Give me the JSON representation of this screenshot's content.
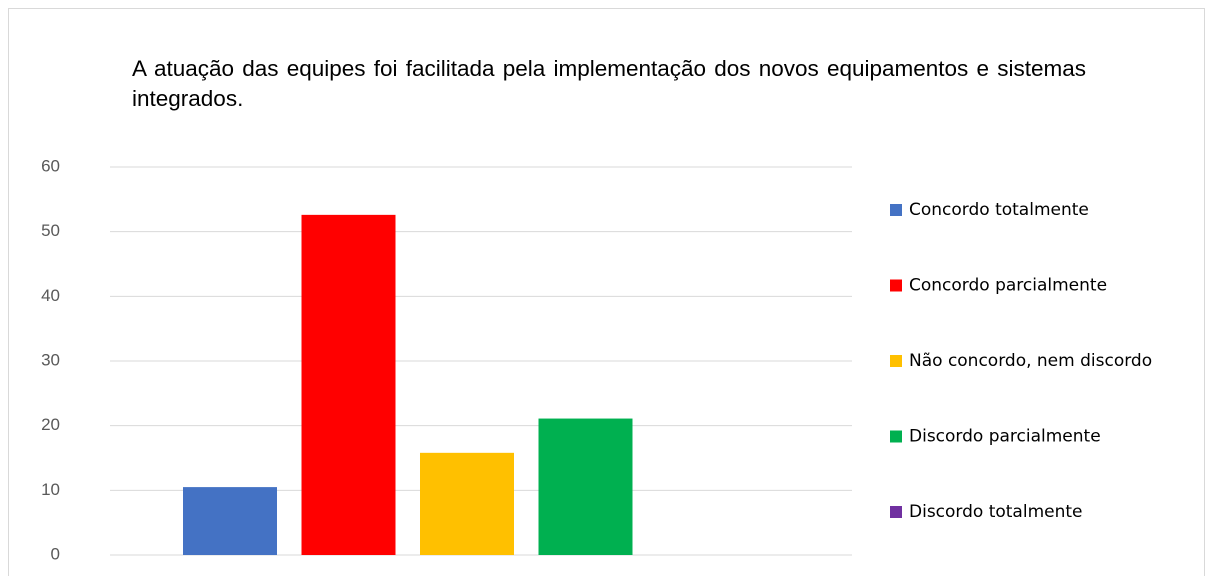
{
  "chart_data": {
    "type": "bar",
    "title": "A atuação das equipes foi facilitada pela implementação dos novos equipamentos e sistemas integrados.",
    "series": [
      {
        "name": "Concordo totalmente",
        "color": "#4472c4",
        "values": [
          10.5
        ]
      },
      {
        "name": "Concordo parcialmente",
        "color": "#ff0000",
        "values": [
          52.6
        ]
      },
      {
        "name": "Não concordo, nem discordo",
        "color": "#ffc000",
        "values": [
          15.8
        ]
      },
      {
        "name": "Discordo parcialmente",
        "color": "#00b050",
        "values": [
          21.1
        ]
      },
      {
        "name": "Discordo totalmente",
        "color": "#7030a0",
        "values": [
          0
        ]
      }
    ],
    "ylim": [
      0,
      60
    ],
    "yticks": [
      0,
      10,
      20,
      30,
      40,
      50,
      60
    ],
    "grid": true,
    "legend": "right"
  }
}
